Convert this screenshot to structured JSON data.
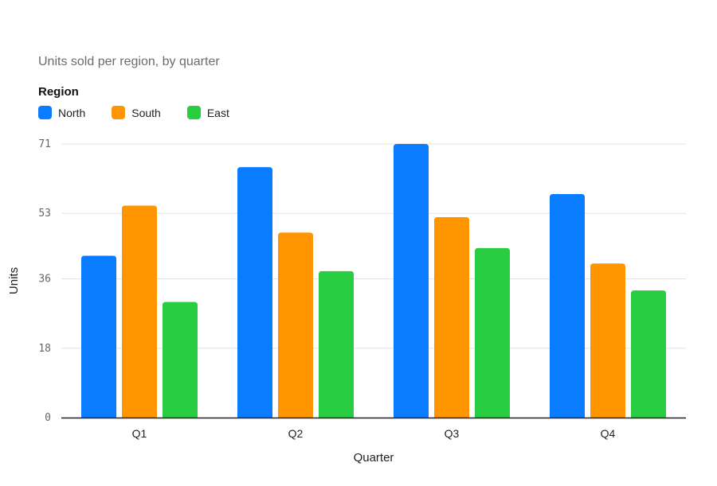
{
  "chart_data": {
    "type": "bar",
    "title": "",
    "subtitle": "Units sold per region, by quarter",
    "legend_title": "Region",
    "legend_position": "top-left",
    "xlabel": "Quarter",
    "ylabel": "Units",
    "categories": [
      "Q1",
      "Q2",
      "Q3",
      "Q4"
    ],
    "ylim": [
      0,
      71
    ],
    "yticks": [
      0,
      18,
      36,
      53,
      71
    ],
    "grid": true,
    "series": [
      {
        "name": "North",
        "color": "#0a7cff",
        "values": [
          42,
          65,
          71,
          58
        ]
      },
      {
        "name": "South",
        "color": "#ff9500",
        "values": [
          55,
          48,
          52,
          40
        ]
      },
      {
        "name": "East",
        "color": "#28cd41",
        "values": [
          30,
          38,
          44,
          33
        ]
      }
    ]
  }
}
